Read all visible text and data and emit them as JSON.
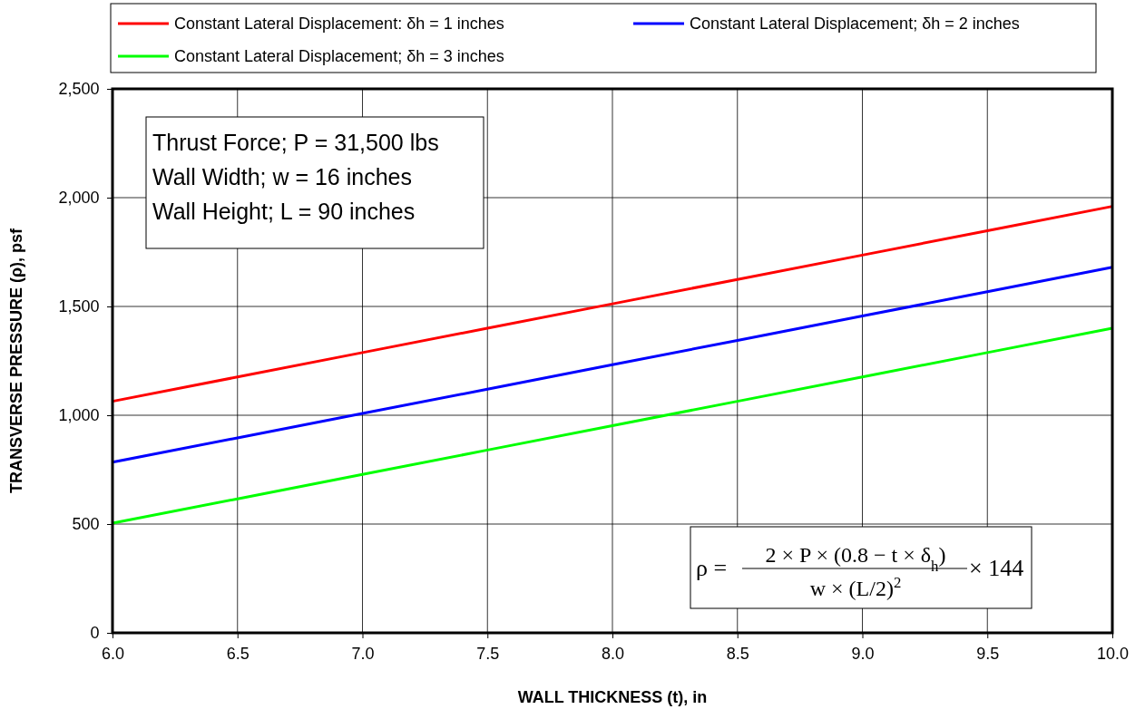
{
  "chart_data": {
    "type": "line",
    "xlabel": "WALL THICKNESS (t), in",
    "ylabel": "TRANSVERSE PRESSURE (ρ), psf",
    "x": [
      6.0,
      6.5,
      7.0,
      7.5,
      8.0,
      8.5,
      9.0,
      9.5,
      10.0
    ],
    "series": [
      {
        "name": "Constant Lateral Displacement: δh = 1 inches",
        "color": "#ff0000",
        "values": [
          1064,
          1176,
          1288,
          1400,
          1512,
          1624,
          1736,
          1848,
          1960
        ]
      },
      {
        "name": "Constant Lateral Displacement; δh = 2 inches",
        "color": "#0000ff",
        "values": [
          784,
          896,
          1008,
          1120,
          1232,
          1344,
          1456,
          1568,
          1680
        ]
      },
      {
        "name": "Constant Lateral Displacement; δh = 3 inches",
        "color": "#00ff00",
        "values": [
          504,
          616,
          728,
          840,
          952,
          1064,
          1176,
          1288,
          1400
        ]
      }
    ],
    "xlim": [
      6.0,
      10.0
    ],
    "xticks": [
      {
        "value": 6,
        "label": "6.0"
      },
      {
        "value": 6.5,
        "label": "6.5"
      },
      {
        "value": 7,
        "label": "7.0"
      },
      {
        "value": 7.5,
        "label": "7.5"
      },
      {
        "value": 8,
        "label": "8.0"
      },
      {
        "value": 8.5,
        "label": "8.5"
      },
      {
        "value": 9,
        "label": "9.0"
      },
      {
        "value": 9.5,
        "label": "9.5"
      },
      {
        "value": 10,
        "label": "10.0"
      }
    ],
    "ylim": [
      0,
      2500
    ],
    "yticks": [
      0,
      500,
      {
        "value": 1000,
        "label": "1,000"
      },
      {
        "value": 1500,
        "label": "1,500"
      },
      {
        "value": 2000,
        "label": "2,000"
      },
      {
        "value": 2500,
        "label": "2,500"
      }
    ],
    "grid": true,
    "legend": "top",
    "marker": "none",
    "line_style": "solid",
    "annotations": [
      "Thrust Force; P = 31,500 lbs",
      "Wall Width; w = 16 inches",
      "Wall Height; L = 90 inches",
      "ρ =",
      "2 × P × (0.8 − t × δ$_{h}$)",
      "w × (L/2)$^{2}$",
      "× 144"
    ]
  }
}
